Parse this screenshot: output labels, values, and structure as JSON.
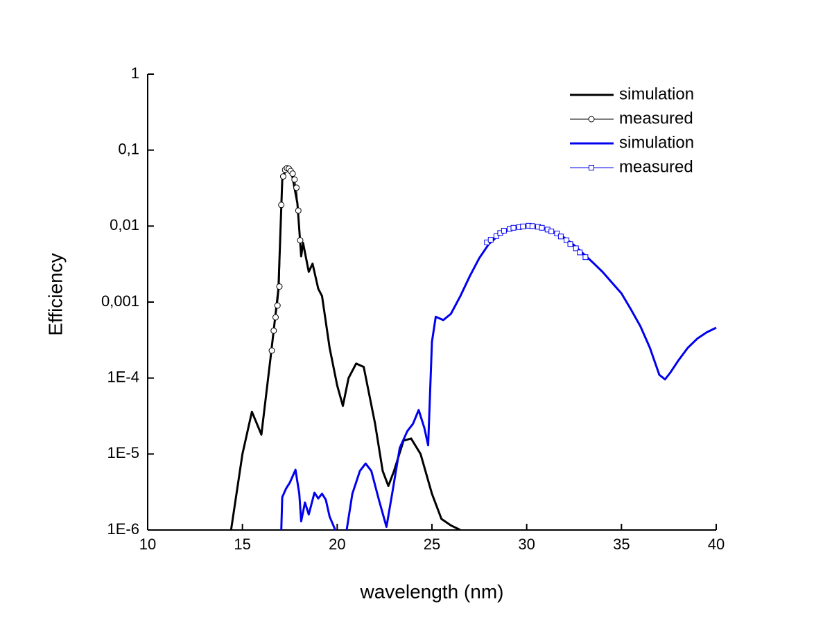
{
  "chart_data": {
    "type": "line",
    "xlabel": "wavelength (nm)",
    "ylabel": "Efficiency",
    "xlim": [
      10,
      40
    ],
    "xticks": [
      10,
      15,
      20,
      25,
      30,
      35,
      40
    ],
    "ylim": [
      1e-06,
      1
    ],
    "ylog": true,
    "yticks": [
      {
        "value": 1e-06,
        "label": "1E-6"
      },
      {
        "value": 1e-05,
        "label": "1E-5"
      },
      {
        "value": 0.0001,
        "label": "1E-4"
      },
      {
        "value": 0.001,
        "label": "0,001"
      },
      {
        "value": 0.01,
        "label": "0,01"
      },
      {
        "value": 0.1,
        "label": "0,1"
      },
      1
    ],
    "legend": "upper right",
    "series": [
      {
        "name": "simulation",
        "color": "#000000",
        "marker": "none",
        "x": [
          14.4,
          15.0,
          15.5,
          16.0,
          16.5,
          16.9,
          17.1,
          17.3,
          17.6,
          17.9,
          18.1,
          18.2,
          18.5,
          18.7,
          19.0,
          19.2,
          19.6,
          20.0,
          20.3,
          20.6,
          21.0,
          21.4,
          22.0,
          22.4,
          22.7,
          23.0,
          23.5,
          23.9,
          24.4,
          25.0,
          25.5,
          26.0,
          26.5
        ],
        "values": [
          1e-06,
          1e-05,
          3.6e-05,
          1.8e-05,
          0.0002,
          0.0015,
          0.04,
          0.057,
          0.05,
          0.02,
          0.004,
          0.006,
          0.0025,
          0.0032,
          0.0015,
          0.0012,
          0.00025,
          8e-05,
          4.3e-05,
          0.0001,
          0.000155,
          0.00014,
          2.5e-05,
          6e-06,
          3.8e-06,
          6e-06,
          1.5e-05,
          1.6e-05,
          1e-05,
          3e-06,
          1.4e-06,
          1.15e-06,
          1e-06
        ]
      },
      {
        "name": "measured",
        "color": "#000000",
        "marker": "circle",
        "x": [
          16.55,
          16.65,
          16.75,
          16.85,
          16.95,
          17.05,
          17.15,
          17.25,
          17.35,
          17.45,
          17.55,
          17.65,
          17.75,
          17.85,
          17.95,
          18.05
        ],
        "values": [
          0.00023,
          0.00042,
          0.00063,
          0.0009,
          0.0016,
          0.019,
          0.045,
          0.055,
          0.058,
          0.057,
          0.053,
          0.049,
          0.041,
          0.032,
          0.016,
          0.0065
        ]
      },
      {
        "name": "simulation",
        "color": "#0000ee",
        "marker": "none",
        "x": [
          17.05,
          17.1,
          17.3,
          17.5,
          17.8,
          18.0,
          18.1,
          18.3,
          18.5,
          18.8,
          19.0,
          19.2,
          19.4,
          19.6,
          19.9,
          20.2,
          20.5,
          20.8,
          21.2,
          21.5,
          21.8,
          22.2,
          22.6,
          22.9,
          23.3,
          23.7,
          24.0,
          24.3,
          24.6,
          24.8,
          25.0,
          25.2,
          25.6,
          26.0,
          26.5,
          27.0,
          27.5,
          28.0,
          28.5,
          29.0,
          29.5,
          30.0,
          30.5,
          31.0,
          31.5,
          32.0,
          32.5,
          33.0,
          33.5,
          34.0,
          34.5,
          35.0,
          35.5,
          36.0,
          36.5,
          37.0,
          37.3,
          37.6,
          38.0,
          38.5,
          39.0,
          39.5,
          40.0
        ],
        "values": [
          1e-06,
          2.7e-06,
          3.5e-06,
          4.2e-06,
          6.2e-06,
          3e-06,
          1.3e-06,
          2.3e-06,
          1.6e-06,
          3.1e-06,
          2.6e-06,
          3e-06,
          2.5e-06,
          1.5e-06,
          1e-06,
          null,
          1e-06,
          3e-06,
          6e-06,
          7.5e-06,
          6e-06,
          2.5e-06,
          1.1e-06,
          3e-06,
          1.2e-05,
          2e-05,
          2.5e-05,
          3.8e-05,
          2.2e-05,
          1.3e-05,
          0.0003,
          0.00064,
          0.00058,
          0.0007,
          0.0012,
          0.0022,
          0.0038,
          0.0058,
          0.0075,
          0.0088,
          0.0096,
          0.01,
          0.0098,
          0.0092,
          0.0082,
          0.007,
          0.0056,
          0.0043,
          0.0033,
          0.0025,
          0.0018,
          0.0013,
          0.0008,
          0.00048,
          0.00025,
          0.00011,
          9.6e-05,
          0.00012,
          0.00017,
          0.00025,
          0.00033,
          0.0004,
          0.00046
        ]
      },
      {
        "name": "measured",
        "color": "#0000ee",
        "marker": "square",
        "x": [
          27.9,
          28.1,
          28.4,
          28.6,
          28.8,
          29.1,
          29.3,
          29.6,
          29.8,
          30.1,
          30.3,
          30.6,
          30.8,
          31.1,
          31.3,
          31.6,
          31.8,
          32.1,
          32.3,
          32.6,
          32.8,
          33.1
        ],
        "values": [
          0.0061,
          0.0066,
          0.0074,
          0.0081,
          0.0087,
          0.0092,
          0.0095,
          0.0097,
          0.0099,
          0.0101,
          0.01,
          0.0098,
          0.0095,
          0.009,
          0.0085,
          0.008,
          0.0073,
          0.0065,
          0.0058,
          0.0051,
          0.0045,
          0.0039
        ]
      }
    ]
  }
}
